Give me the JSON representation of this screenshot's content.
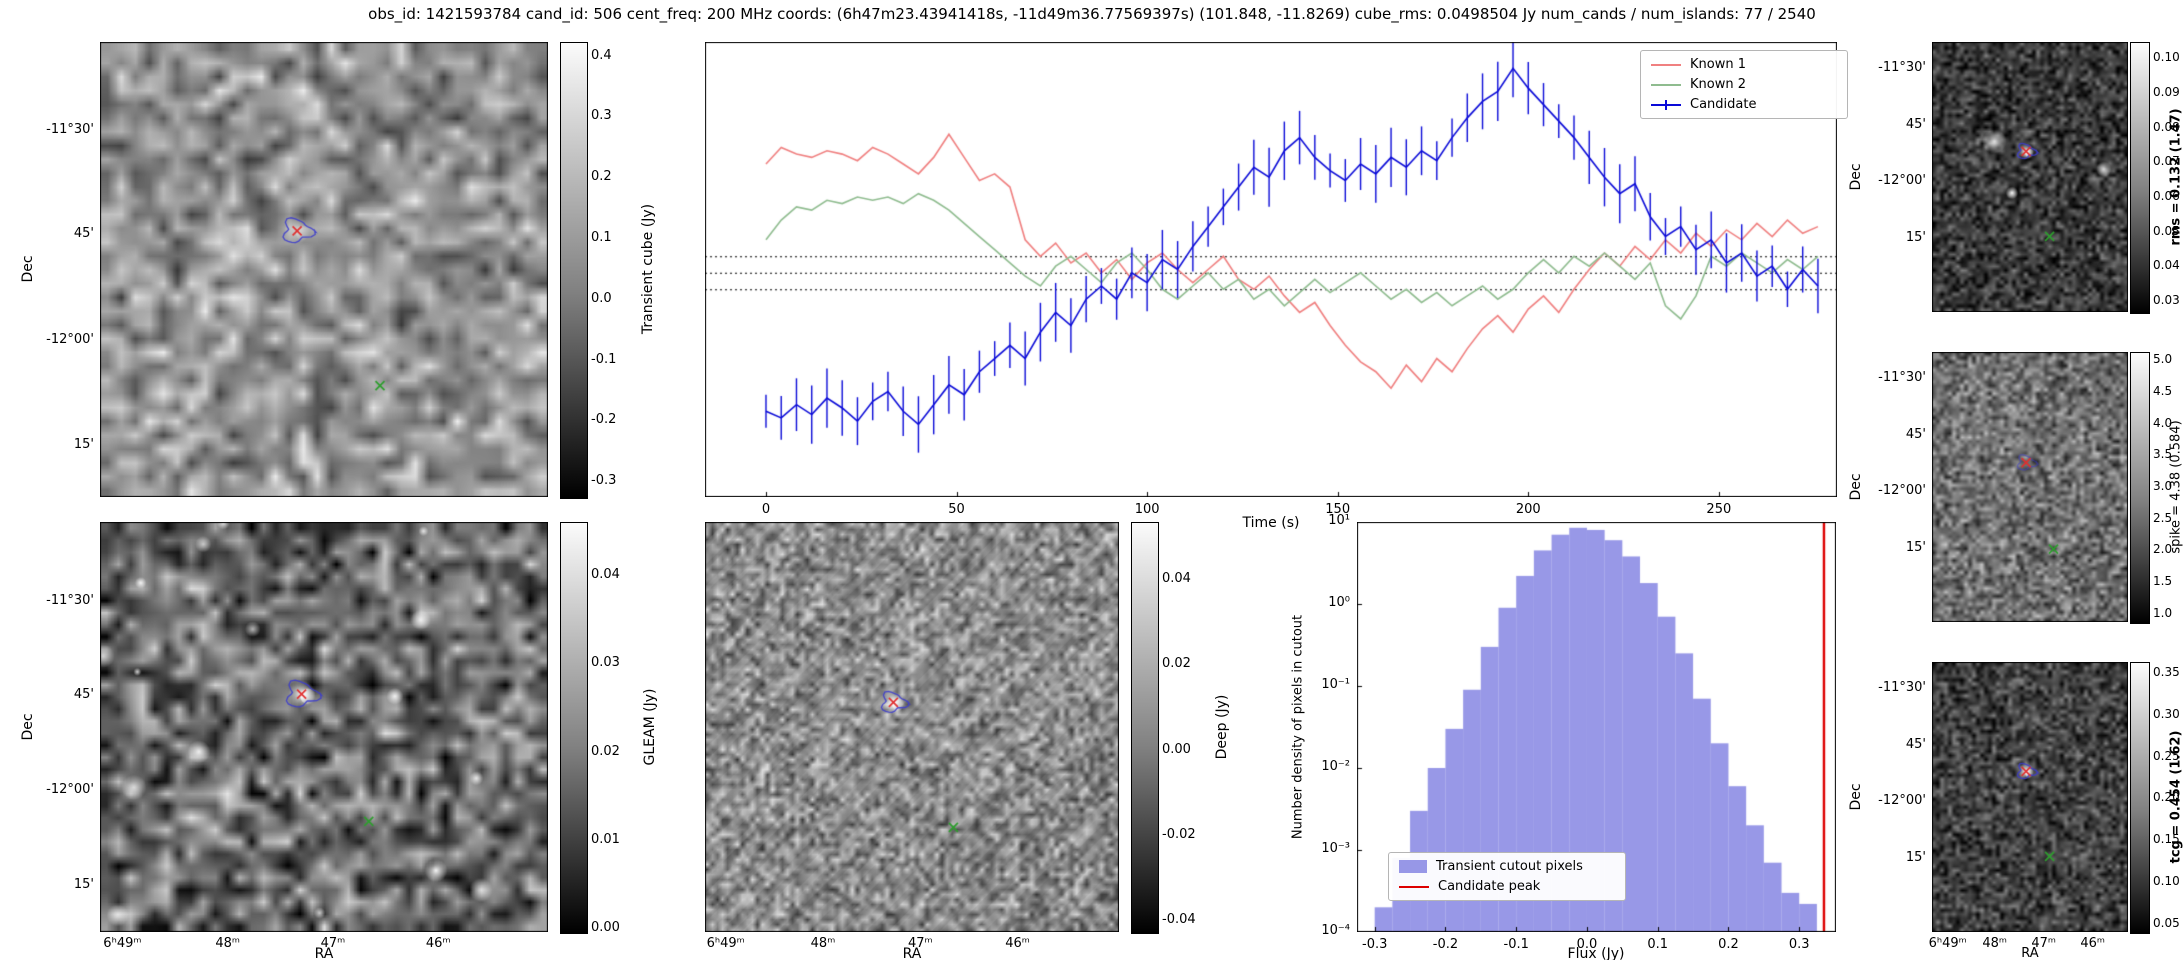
{
  "title": "obs_id: 1421593784 cand_id: 506 cent_freq: 200 MHz coords: (6h47m23.43941418s, -11d49m36.77569397s) (101.848, -11.8269) cube_rms: 0.0498504 Jy num_cands / num_islands: 77 / 2540",
  "axes": {
    "dec_label": "Dec",
    "ra_label": "RA",
    "dec_ticks": [
      "-11°30'",
      "45'",
      "-12°00'",
      "15'"
    ],
    "ra_ticks": [
      "6ʰ49ᵐ",
      "48ᵐ",
      "47ᵐ",
      "46ᵐ"
    ]
  },
  "colorbars": {
    "transient": {
      "label": "Transient cube (Jy)",
      "ticks": [
        "0.4",
        "0.3",
        "0.2",
        "0.1",
        "0.0",
        "-0.1",
        "-0.2",
        "-0.3"
      ]
    },
    "gleam": {
      "label": "GLEAM (Jy)",
      "ticks": [
        "0.04",
        "0.03",
        "0.02",
        "0.01",
        "0.00"
      ]
    },
    "deep": {
      "label": "Deep (Jy)",
      "ticks": [
        "0.04",
        "0.02",
        "0.00",
        "-0.02",
        "-0.04"
      ]
    },
    "rms": {
      "label": "rms = 0.132 (1.47)",
      "ticks": [
        "0.10",
        "0.09",
        "0.08",
        "0.07",
        "0.06",
        "0.05",
        "0.04",
        "0.03"
      ]
    },
    "spike": {
      "label": "spike = 4.38 (0.584)",
      "ticks": [
        "5.0",
        "4.5",
        "4.0",
        "3.5",
        "3.0",
        "2.5",
        "2.0",
        "1.5",
        "1.0"
      ]
    },
    "tcg": {
      "label": "tcg = 0.454 (1.62)",
      "ticks": [
        "0.35",
        "0.30",
        "0.25",
        "0.20",
        "0.15",
        "0.10",
        "0.05"
      ]
    }
  },
  "chart_data": [
    {
      "type": "line",
      "title": "",
      "xlabel": "Time (s)",
      "ylabel": "",
      "xlim": [
        -16,
        281
      ],
      "ylim": [
        -0.68,
        0.7
      ],
      "x_step": 4,
      "xticks": [
        0,
        50,
        100,
        150,
        200,
        250
      ],
      "hlines": [
        0.05,
        0.0,
        -0.05
      ],
      "hline_note": "dotted lines at 0 and ±cube_rms (0.0498504 Jy)",
      "legend_position": "upper right",
      "series": [
        {
          "name": "Known 1",
          "color": "#f08080",
          "values": [
            0.33,
            0.38,
            0.36,
            0.35,
            0.37,
            0.36,
            0.34,
            0.38,
            0.36,
            0.33,
            0.3,
            0.35,
            0.42,
            0.35,
            0.28,
            0.3,
            0.26,
            0.1,
            0.05,
            0.09,
            0.03,
            0.06,
            0.0,
            0.04,
            -0.02,
            0.03,
            0.06,
            0.01,
            -0.03,
            0.01,
            0.05,
            -0.02,
            -0.05,
            -0.01,
            -0.07,
            -0.12,
            -0.09,
            -0.16,
            -0.22,
            -0.27,
            -0.3,
            -0.35,
            -0.28,
            -0.33,
            -0.26,
            -0.3,
            -0.23,
            -0.17,
            -0.13,
            -0.18,
            -0.11,
            -0.07,
            -0.12,
            -0.05,
            0.01,
            0.06,
            0.02,
            0.08,
            0.04,
            0.1,
            0.06,
            0.12,
            0.08,
            0.13,
            0.1,
            0.15,
            0.11,
            0.16,
            0.12,
            0.14
          ]
        },
        {
          "name": "Known 2",
          "color": "#8fbc8f",
          "values": [
            0.1,
            0.16,
            0.2,
            0.19,
            0.22,
            0.21,
            0.23,
            0.22,
            0.23,
            0.21,
            0.24,
            0.22,
            0.19,
            0.15,
            0.11,
            0.07,
            0.03,
            -0.01,
            -0.04,
            0.02,
            0.05,
            0.01,
            -0.03,
            0.03,
            0.06,
            0.01,
            -0.05,
            -0.08,
            -0.04,
            0.0,
            -0.05,
            -0.02,
            -0.08,
            -0.05,
            -0.1,
            -0.06,
            -0.02,
            -0.06,
            -0.03,
            0.0,
            -0.04,
            -0.08,
            -0.05,
            -0.09,
            -0.06,
            -0.1,
            -0.07,
            -0.04,
            -0.08,
            -0.05,
            0.0,
            0.04,
            0.0,
            0.05,
            0.02,
            0.06,
            0.02,
            -0.02,
            0.03,
            -0.1,
            -0.14,
            -0.07,
            0.05,
            0.02,
            0.06,
            0.03,
            0.0,
            0.04,
            0.01,
            0.05
          ]
        },
        {
          "name": "Candidate",
          "color": "#0a0ad8",
          "errorbars": 0.05,
          "values": [
            -0.42,
            -0.44,
            -0.4,
            -0.43,
            -0.38,
            -0.41,
            -0.45,
            -0.39,
            -0.36,
            -0.42,
            -0.46,
            -0.4,
            -0.34,
            -0.37,
            -0.3,
            -0.26,
            -0.22,
            -0.26,
            -0.18,
            -0.12,
            -0.16,
            -0.08,
            -0.04,
            -0.08,
            0.0,
            -0.03,
            0.04,
            0.01,
            0.08,
            0.14,
            0.2,
            0.26,
            0.32,
            0.29,
            0.37,
            0.41,
            0.35,
            0.31,
            0.28,
            0.33,
            0.3,
            0.35,
            0.32,
            0.37,
            0.34,
            0.41,
            0.47,
            0.52,
            0.55,
            0.62,
            0.56,
            0.51,
            0.46,
            0.41,
            0.35,
            0.29,
            0.24,
            0.27,
            0.17,
            0.11,
            0.14,
            0.07,
            0.1,
            0.03,
            0.06,
            -0.01,
            0.02,
            -0.05,
            0.01,
            -0.04
          ]
        }
      ]
    },
    {
      "type": "bar",
      "title": "",
      "xlabel": "Flux (Jy)",
      "ylabel": "Number density of pixels in cutout",
      "yscale": "log",
      "xlim": [
        -0.325,
        0.352
      ],
      "ylim": [
        0.0001,
        10
      ],
      "bin_start": -0.3,
      "bin_width": 0.025,
      "values": [
        0.0002,
        0.0008,
        0.003,
        0.01,
        0.03,
        0.09,
        0.3,
        0.9,
        2.2,
        4.5,
        7.0,
        8.5,
        8.0,
        6.0,
        3.8,
        1.8,
        0.7,
        0.25,
        0.07,
        0.02,
        0.006,
        0.002,
        0.0007,
        0.0003,
        0.00022
      ],
      "candidate_peak": 0.335,
      "xticks": [
        "-0.3",
        "-0.2",
        "-0.1",
        "0.0",
        "0.1",
        "0.2",
        "0.3"
      ],
      "yticks": [
        "10¹",
        "10⁰",
        "10⁻¹",
        "10⁻²",
        "10⁻³",
        "10⁻⁴"
      ],
      "legend": [
        {
          "label": "Transient cutout pixels",
          "color": "#7b7be0"
        },
        {
          "label": "Candidate peak",
          "color": "#dd0000"
        }
      ],
      "legend_position": "lower left"
    }
  ]
}
